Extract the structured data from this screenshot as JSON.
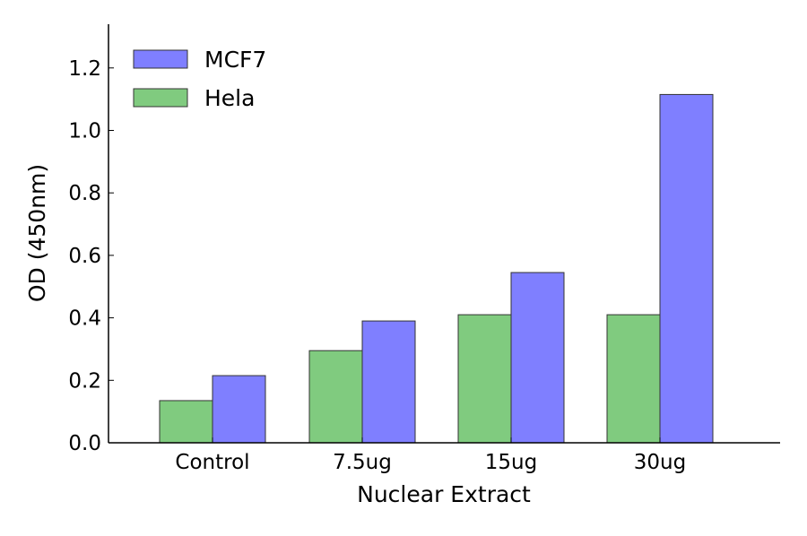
{
  "chart_data": {
    "type": "bar",
    "title": "",
    "xlabel": "Nuclear Extract",
    "ylabel": "OD (450nm)",
    "categories": [
      "Control",
      "7.5ug",
      "15ug",
      "30ug"
    ],
    "series": [
      {
        "name": "Hela",
        "values": [
          0.135,
          0.295,
          0.41,
          0.41
        ],
        "color": "#80cb7f"
      },
      {
        "name": "MCF7",
        "values": [
          0.215,
          0.39,
          0.545,
          1.115
        ],
        "color": "#7f7fff"
      }
    ],
    "legend_order": [
      "MCF7",
      "Hela"
    ],
    "ylim": [
      0,
      1.34
    ],
    "yticks": [
      "0.0",
      "0.2",
      "0.4",
      "0.6",
      "0.8",
      "1.0",
      "1.2"
    ],
    "grid": false,
    "legend_position": "top-left"
  }
}
